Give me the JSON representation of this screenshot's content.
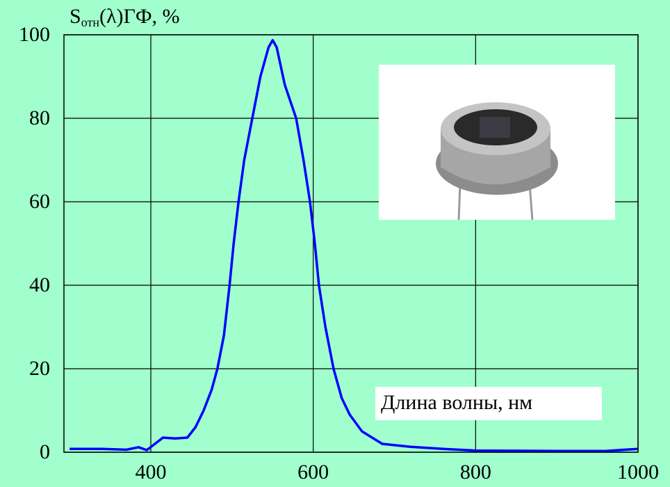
{
  "chart_data": {
    "type": "line",
    "y_label": {
      "main": "S",
      "sub": "отн",
      "rest": "(λ)ГФ, %"
    },
    "x_label": "Длина волны, нм",
    "xlim": [
      293,
      1000
    ],
    "xticks": [
      400,
      600,
      800,
      1000
    ],
    "ylim": [
      0,
      100
    ],
    "yticks": [
      0,
      20,
      40,
      60,
      80,
      100
    ],
    "grid": true,
    "color": "#0000ff",
    "x": [
      300,
      340,
      370,
      385,
      395,
      405,
      415,
      430,
      445,
      455,
      465,
      475,
      482,
      490,
      497,
      502,
      508,
      515,
      525,
      535,
      545,
      550,
      555,
      565,
      579,
      588,
      596,
      602,
      607,
      615,
      625,
      635,
      645,
      660,
      685,
      720,
      760,
      800,
      900,
      960,
      1000
    ],
    "values": [
      0.8,
      0.8,
      0.6,
      1.2,
      0.5,
      2,
      3.5,
      3.3,
      3.5,
      6,
      10,
      15,
      20,
      28,
      40,
      50,
      60,
      70,
      80,
      90,
      97,
      98.7,
      97,
      88,
      80,
      70,
      60,
      50,
      40,
      30,
      20,
      13,
      9,
      5,
      2,
      1.3,
      0.8,
      0.4,
      0.3,
      0.3,
      0.8
    ]
  }
}
